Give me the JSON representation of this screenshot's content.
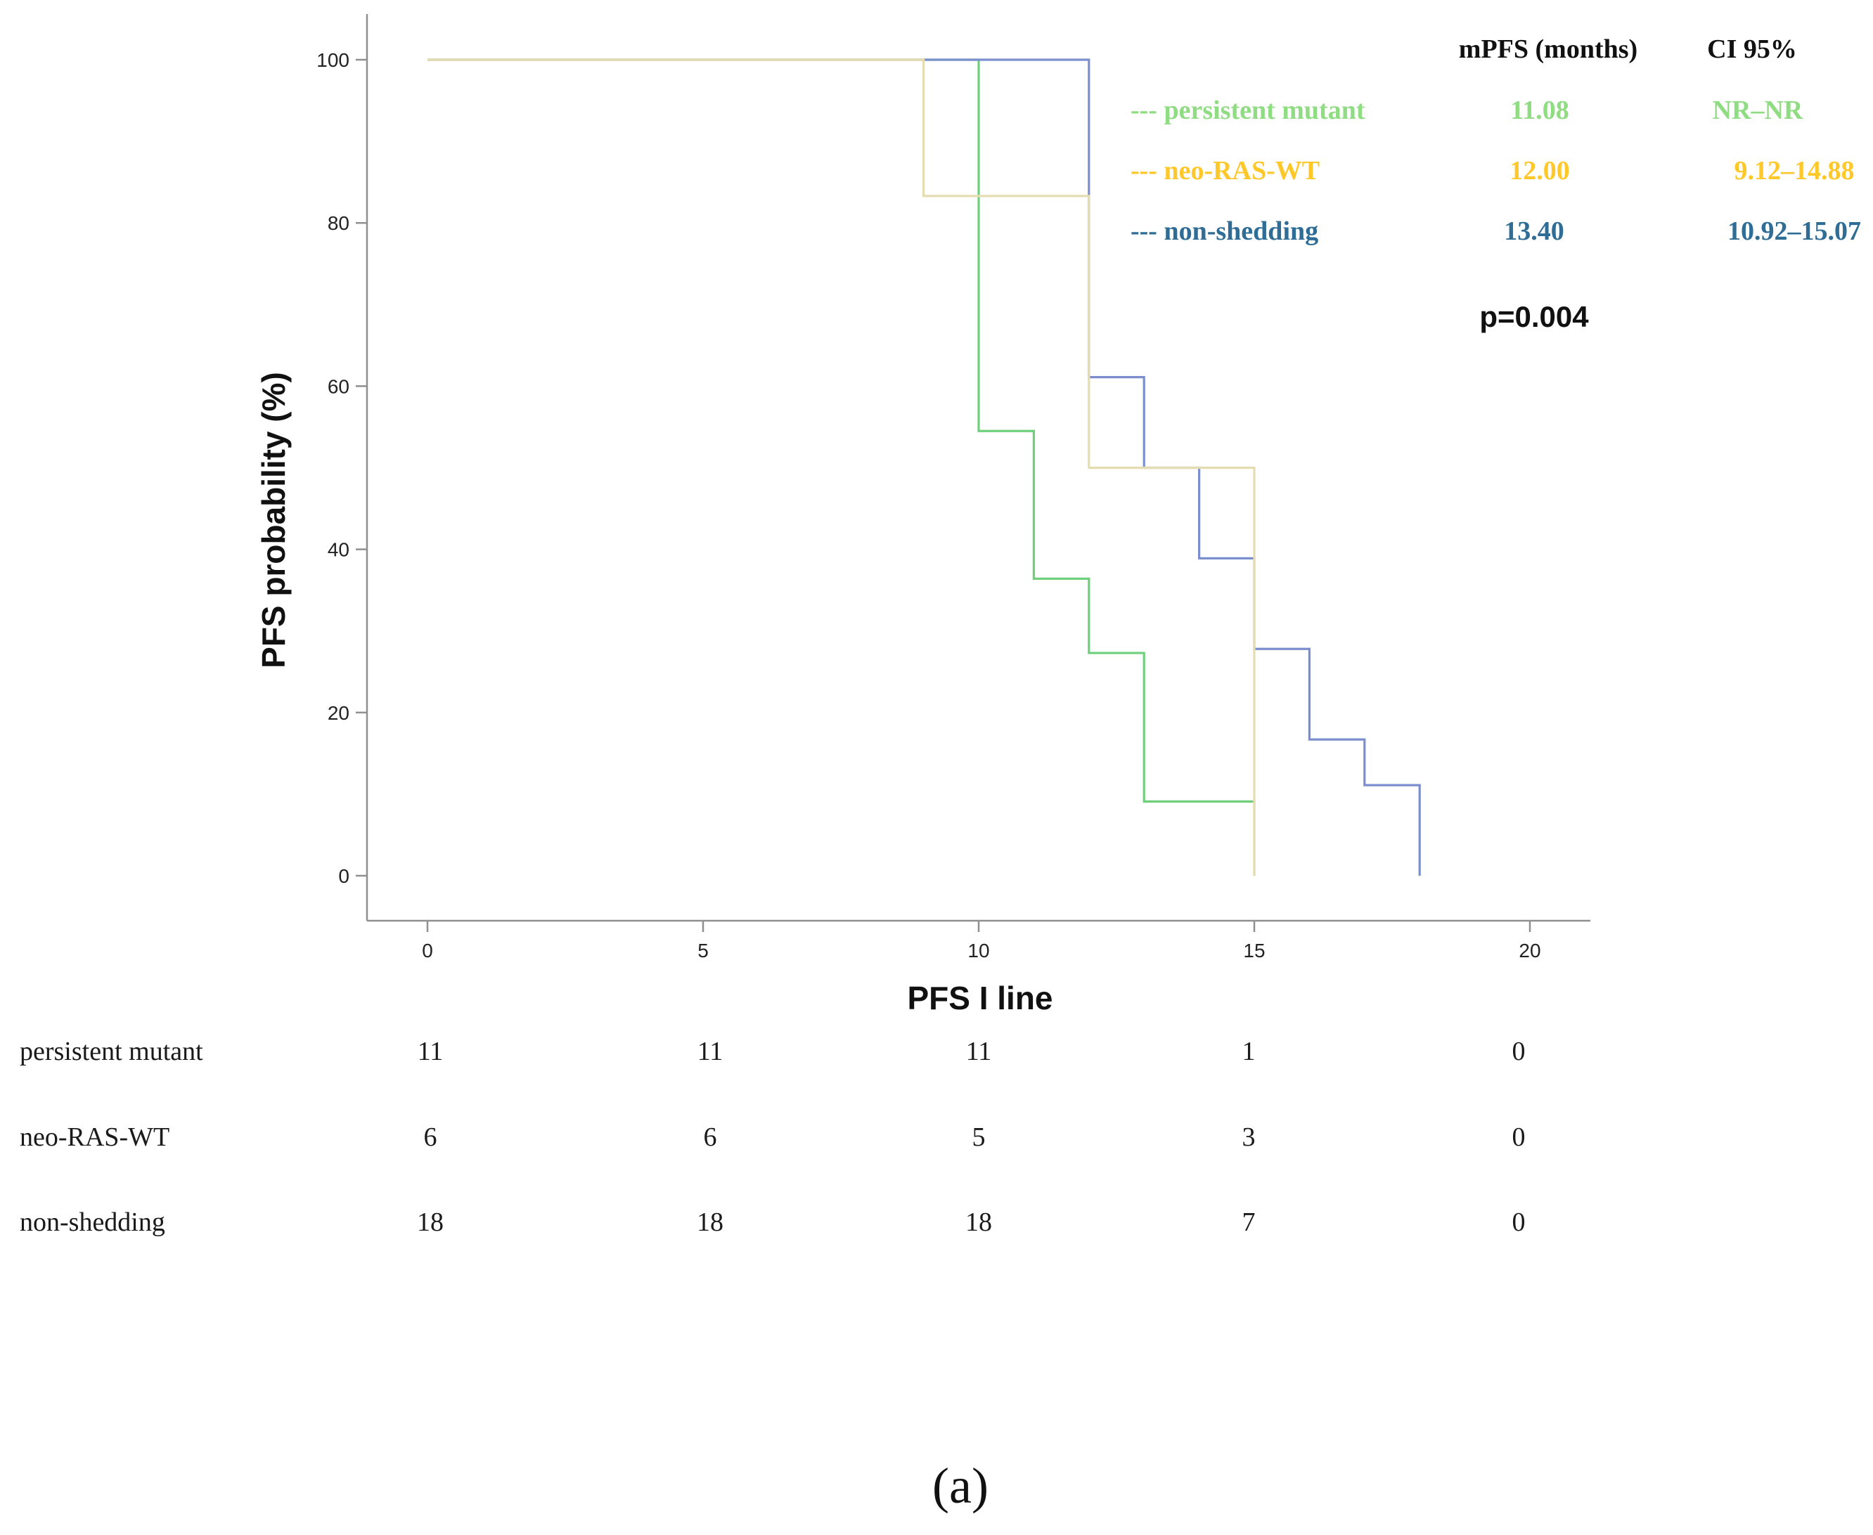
{
  "chart_data": {
    "type": "line",
    "subtype": "kaplan-meier",
    "xlabel": "PFS I line",
    "ylabel": "PFS probability (%)",
    "xlim": [
      0,
      20
    ],
    "ylim": [
      0,
      100
    ],
    "x_ticks": [
      0,
      5,
      10,
      15,
      20
    ],
    "y_ticks": [
      0,
      20,
      40,
      60,
      80,
      100
    ],
    "grid": false,
    "series": [
      {
        "name": "persistent mutant",
        "color": "#6fd07c",
        "steps": [
          [
            0,
            100
          ],
          [
            10,
            54.5
          ],
          [
            11,
            36.4
          ],
          [
            12,
            27.3
          ],
          [
            13,
            9.1
          ],
          [
            15,
            0
          ]
        ]
      },
      {
        "name": "non-shedding",
        "color": "#7b8fcf",
        "steps": [
          [
            0,
            100
          ],
          [
            12,
            61.1
          ],
          [
            13,
            50.0
          ],
          [
            14,
            38.9
          ],
          [
            15,
            27.8
          ],
          [
            16,
            16.7
          ],
          [
            17,
            11.1
          ],
          [
            18,
            0
          ]
        ]
      },
      {
        "name": "neo-RAS-WT",
        "color": "#e5dcb0",
        "steps": [
          [
            0,
            100
          ],
          [
            9,
            83.3
          ],
          [
            12,
            50.0
          ],
          [
            15,
            0
          ]
        ]
      }
    ]
  },
  "legend": {
    "header_mpfs": "mPFS (months)",
    "header_ci": "CI 95%",
    "rows": [
      {
        "label": "---  persistent mutant",
        "mpfs": "11.08",
        "ci": "NR–NR",
        "color": "#8fdc83"
      },
      {
        "label": "--- neo-RAS-WT",
        "mpfs": "12.00",
        "ci": "9.12–14.88",
        "color": "#ffc82a"
      },
      {
        "label": "---  non-shedding",
        "mpfs": "13.40",
        "ci": "10.92–15.07",
        "color": "#2f6d96"
      }
    ],
    "p_value": "p=0.004"
  },
  "risk_table": {
    "rows": [
      {
        "label": "persistent mutant",
        "counts": [
          "11",
          "11",
          "11",
          "1",
          "0"
        ]
      },
      {
        "label": "neo-RAS-WT",
        "counts": [
          "6",
          "6",
          "5",
          "3",
          "0"
        ]
      },
      {
        "label": "non-shedding",
        "counts": [
          "18",
          "18",
          "18",
          "7",
          "0"
        ]
      }
    ]
  },
  "panel_label": "(a)"
}
